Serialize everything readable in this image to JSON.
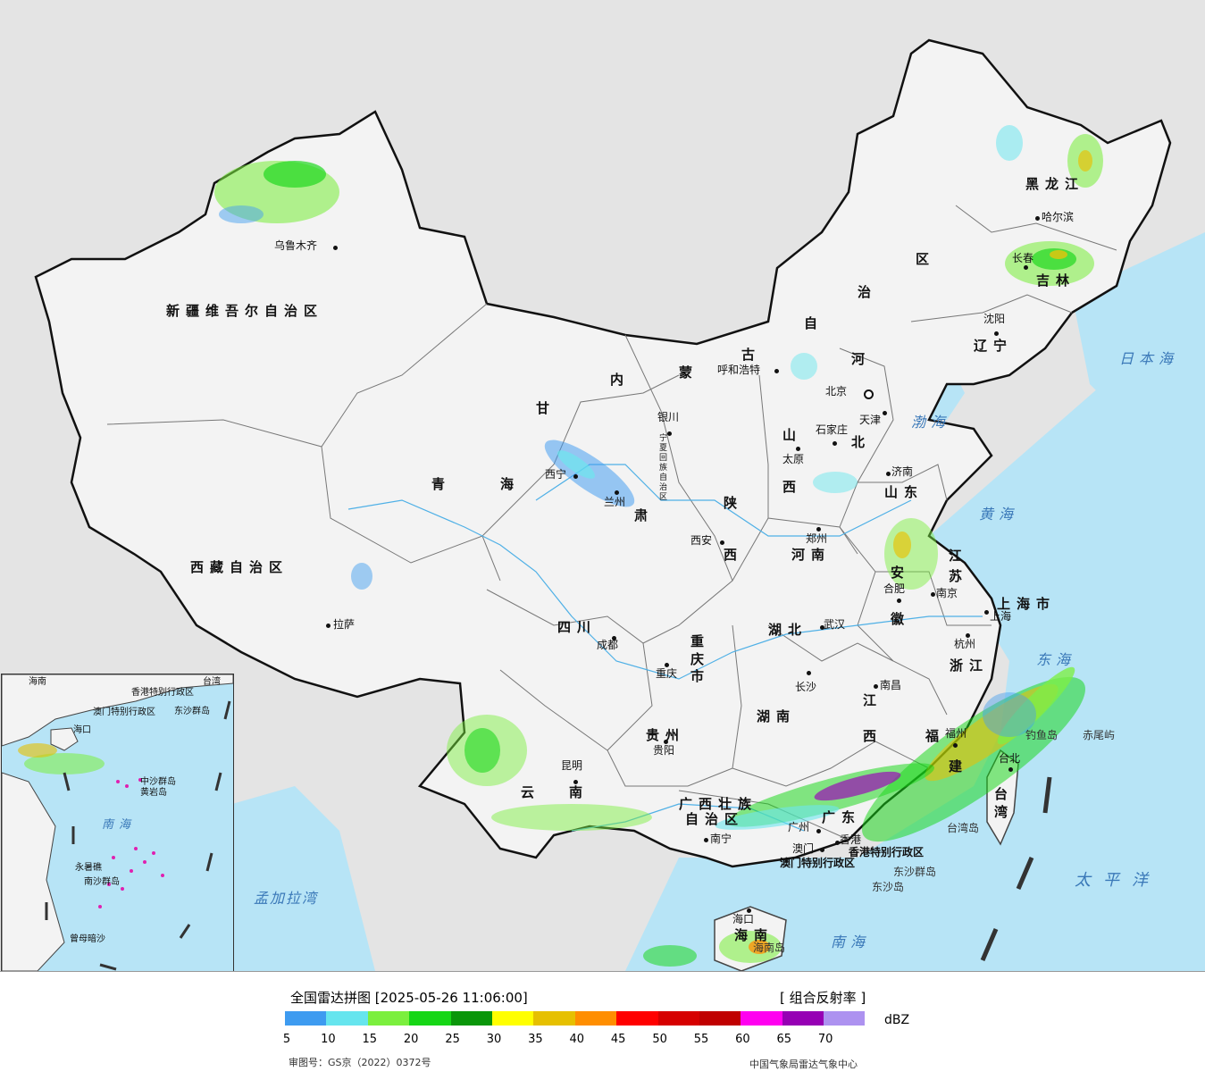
{
  "map": {
    "regions": [
      {
        "name": "新疆维吾尔自治区",
        "style": "prov"
      },
      {
        "name": "西藏自治区",
        "style": "prov"
      },
      {
        "name": "青",
        "style": "prov"
      },
      {
        "name": "海",
        "style": "prov"
      },
      {
        "name": "甘",
        "style": "prov"
      },
      {
        "name": "肃",
        "style": "prov"
      },
      {
        "name": "内",
        "style": "prov"
      },
      {
        "name": "蒙",
        "style": "prov"
      },
      {
        "name": "古",
        "style": "prov"
      },
      {
        "name": "自",
        "style": "prov"
      },
      {
        "name": "治",
        "style": "prov"
      },
      {
        "name": "区",
        "style": "prov"
      },
      {
        "name": "黑龙江",
        "style": "prov"
      },
      {
        "name": "吉林",
        "style": "prov"
      },
      {
        "name": "辽宁",
        "style": "prov"
      },
      {
        "name": "河",
        "style": "prov"
      },
      {
        "name": "北",
        "style": "prov"
      },
      {
        "name": "山",
        "style": "prov"
      },
      {
        "name": "西",
        "style": "prov"
      },
      {
        "name": "陕",
        "style": "prov"
      },
      {
        "name": "西",
        "style": "prov"
      },
      {
        "name": "山东",
        "style": "prov"
      },
      {
        "name": "河南",
        "style": "prov"
      },
      {
        "name": "江",
        "style": "prov"
      },
      {
        "name": "苏",
        "style": "prov"
      },
      {
        "name": "安",
        "style": "prov"
      },
      {
        "name": "徽",
        "style": "prov"
      },
      {
        "name": "上海市",
        "style": "prov"
      },
      {
        "name": "浙江",
        "style": "prov"
      },
      {
        "name": "湖北",
        "style": "prov"
      },
      {
        "name": "四川",
        "style": "prov"
      },
      {
        "name": "重庆市",
        "style": "prov"
      },
      {
        "name": "湖南",
        "style": "prov"
      },
      {
        "name": "江",
        "style": "prov"
      },
      {
        "name": "西",
        "style": "prov"
      },
      {
        "name": "福",
        "style": "prov"
      },
      {
        "name": "建",
        "style": "prov"
      },
      {
        "name": "贵州",
        "style": "prov"
      },
      {
        "name": "云",
        "style": "prov"
      },
      {
        "name": "南",
        "style": "prov"
      },
      {
        "name": "广西壮族",
        "style": "prov"
      },
      {
        "name": "自治区",
        "style": "prov"
      },
      {
        "name": "广东",
        "style": "prov"
      },
      {
        "name": "台湾",
        "style": "prov"
      },
      {
        "name": "海南",
        "style": "prov"
      },
      {
        "name": "宁夏回族自治区",
        "style": "small"
      },
      {
        "name": "香港特别行政区",
        "style": "prov"
      },
      {
        "name": "澳门特别行政区",
        "style": "prov"
      }
    ],
    "cities": [
      "乌鲁木齐",
      "拉萨",
      "西宁",
      "兰州",
      "银川",
      "呼和浩特",
      "北京",
      "天津",
      "石家庄",
      "太原",
      "西安",
      "郑州",
      "济南",
      "合肥",
      "南京",
      "上海",
      "杭州",
      "武汉",
      "成都",
      "重庆",
      "长沙",
      "南昌",
      "福州",
      "贵阳",
      "昆明",
      "南宁",
      "广州",
      "香港",
      "澳门",
      "海口",
      "哈尔滨",
      "长春",
      "沈阳",
      "台北"
    ],
    "seas": [
      "日本海",
      "渤海",
      "黄海",
      "东海",
      "太平洋",
      "南海",
      "孟加拉湾"
    ],
    "islands": [
      "钓鱼岛",
      "赤尾屿",
      "台湾岛",
      "东沙群岛",
      "东沙岛",
      "海南岛"
    ]
  },
  "inset": {
    "labels": [
      "海南",
      "香港特别行政区",
      "澳门特别行政区",
      "东沙群岛",
      "海口",
      "中沙群岛",
      "黄岩岛",
      "南海",
      "永暑礁",
      "南沙群岛",
      "曾母暗沙",
      "台湾"
    ]
  },
  "legend": {
    "title": "全国雷达拼图 [2025-05-26 11:06:00]",
    "product": "[ 组合反射率 ]",
    "unit": "dBZ",
    "colors": [
      "#3e9bf0",
      "#66e5ee",
      "#7bef3e",
      "#16d616",
      "#0a960a",
      "#ffff00",
      "#e6c000",
      "#ff8e00",
      "#ff0000",
      "#d60000",
      "#c00000",
      "#ff00f0",
      "#9600b4",
      "#ad92f0"
    ],
    "ticks": [
      "5",
      "10",
      "15",
      "20",
      "25",
      "30",
      "35",
      "40",
      "45",
      "50",
      "55",
      "60",
      "65",
      "70"
    ],
    "approval": "审图号：GS京（2022）0372号",
    "source": "中国气象局雷达气象中心"
  }
}
